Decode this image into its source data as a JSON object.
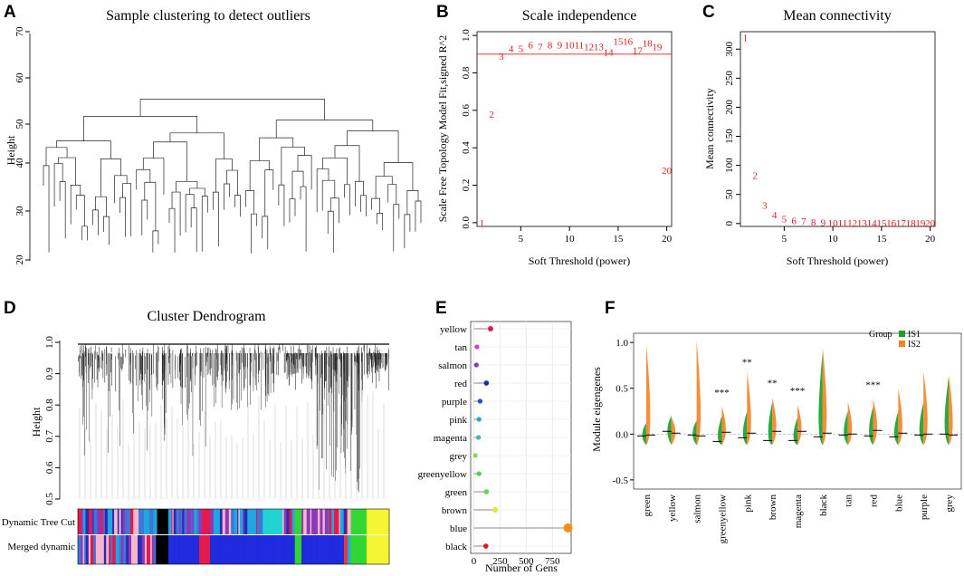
{
  "panels": {
    "A": {
      "letter": "A",
      "title": "Sample clustering to detect outliers",
      "ylabel": "Height",
      "yticks": [
        "20",
        "30",
        "40",
        "50",
        "60",
        "70"
      ],
      "ylim": [
        20,
        72
      ]
    },
    "B": {
      "letter": "B",
      "title": "Scale independence",
      "xlabel": "Soft Threshold (power)",
      "ylabel": "Scale Free Topology Model Fit,signed R^2",
      "xticks": [
        "5",
        "10",
        "15",
        "20"
      ],
      "yticks": [
        "0.0",
        "0.2",
        "0.4",
        "0.6",
        "0.8",
        "1.0"
      ]
    },
    "C": {
      "letter": "C",
      "title": "Mean connectivity",
      "xlabel": "Soft Threshold (power)",
      "ylabel": "Mean connectivity",
      "xticks": [
        "5",
        "10",
        "15",
        "20"
      ],
      "yticks": [
        "0",
        "50",
        "100",
        "150",
        "200",
        "250",
        "300"
      ]
    },
    "D": {
      "letter": "D",
      "title": "Cluster Dendrogram",
      "ylabel": "Height",
      "yticks": [
        "0.5",
        "0.6",
        "0.7",
        "0.8",
        "0.9",
        "1.0"
      ],
      "row1": "Dynamic Tree Cut",
      "row2": "Merged dynamic"
    },
    "E": {
      "letter": "E",
      "xlabel": "Number of Gens",
      "xticks": [
        "0",
        "250",
        "500",
        "750"
      ]
    },
    "F": {
      "letter": "F",
      "ylabel": "Module eigengenes",
      "yticks": [
        "-0.5",
        "0.0",
        "0.5",
        "1.0"
      ],
      "legend_title": "Group",
      "legend": [
        {
          "label": "IS1",
          "color": "#1a9e2c"
        },
        {
          "label": "IS2",
          "color": "#f58220"
        }
      ]
    }
  },
  "chart_data": [
    {
      "panel": "B",
      "type": "scatter",
      "title": "Scale independence",
      "xlabel": "Soft Threshold (power)",
      "ylabel": "Scale Free Topology Model Fit,signed R^2",
      "xlim": [
        0.5,
        20.5
      ],
      "ylim": [
        -0.02,
        1.02
      ],
      "x": [
        1,
        2,
        3,
        4,
        5,
        6,
        7,
        8,
        9,
        10,
        11,
        12,
        13,
        14,
        15,
        16,
        17,
        18,
        19,
        20
      ],
      "y": [
        0.0,
        0.58,
        0.89,
        0.93,
        0.93,
        0.95,
        0.94,
        0.95,
        0.95,
        0.95,
        0.95,
        0.94,
        0.94,
        0.91,
        0.97,
        0.97,
        0.92,
        0.96,
        0.94,
        0.28
      ],
      "labels": [
        "1",
        "2",
        "3",
        "4",
        "5",
        "6",
        "7",
        "8",
        "9",
        "10",
        "11",
        "12",
        "13",
        "14",
        "15",
        "16",
        "17",
        "18",
        "19",
        "20"
      ],
      "hline": 0.9,
      "color": "#e41a1c"
    },
    {
      "panel": "C",
      "type": "scatter",
      "title": "Mean connectivity",
      "xlabel": "Soft Threshold (power)",
      "ylabel": "Mean connectivity",
      "xlim": [
        0.5,
        20.5
      ],
      "ylim": [
        -5,
        330
      ],
      "x": [
        1,
        2,
        3,
        4,
        5,
        6,
        7,
        8,
        9,
        10,
        11,
        12,
        13,
        14,
        15,
        16,
        17,
        18,
        19,
        20
      ],
      "y": [
        320,
        83,
        32,
        15,
        8,
        5,
        4,
        3,
        2,
        1,
        1,
        1,
        1,
        1,
        1,
        1,
        1,
        1,
        1,
        1
      ],
      "labels": [
        "1",
        "2",
        "3",
        "4",
        "5",
        "6",
        "7",
        "8",
        "9",
        "10",
        "11",
        "12",
        "13",
        "14",
        "15",
        "16",
        "17",
        "18",
        "19",
        "20"
      ],
      "color": "#e41a1c"
    },
    {
      "panel": "E",
      "type": "bar",
      "orientation": "horizontal-lollipop",
      "xlabel": "Number of Gens",
      "xlim": [
        -30,
        930
      ],
      "categories": [
        "yellow",
        "tan",
        "salmon",
        "red",
        "purple",
        "pink",
        "magenta",
        "grey",
        "greenyellow",
        "green",
        "brown",
        "blue",
        "black"
      ],
      "values": [
        160,
        30,
        25,
        120,
        60,
        50,
        45,
        15,
        50,
        120,
        205,
        900,
        115
      ],
      "colors": [
        "#e6194b",
        "#cc44cc",
        "#8a3ab9",
        "#1f2bb5",
        "#2b48c8",
        "#1faad4",
        "#2fc0b0",
        "#7ed957",
        "#4fd04f",
        "#5ed65a",
        "#e6e635",
        "#ff8c1a",
        "#e31a1c"
      ]
    },
    {
      "panel": "F",
      "type": "violin",
      "ylabel": "Module eigengenes",
      "ylim": [
        -0.6,
        1.1
      ],
      "categories": [
        "green",
        "yellow",
        "salmon",
        "greenyellow",
        "pink",
        "brown",
        "magenta",
        "black",
        "tan",
        "red",
        "blue",
        "purple",
        "grey"
      ],
      "significance": [
        "",
        "",
        "",
        "***",
        "**",
        "**",
        "***",
        "",
        "",
        "***",
        "",
        "",
        ""
      ],
      "series": [
        {
          "name": "IS1",
          "medians": [
            -0.02,
            0.03,
            -0.01,
            -0.08,
            -0.04,
            -0.07,
            -0.07,
            -0.03,
            -0.01,
            -0.02,
            -0.03,
            -0.01,
            0.0
          ],
          "max": [
            0.12,
            0.2,
            0.15,
            0.2,
            0.25,
            0.35,
            0.18,
            0.9,
            0.25,
            0.3,
            0.25,
            0.35,
            0.62
          ]
        },
        {
          "name": "IS2",
          "medians": [
            -0.01,
            0.01,
            -0.02,
            0.02,
            0.01,
            0.03,
            0.03,
            0.01,
            0.0,
            0.04,
            0.01,
            0.0,
            -0.01
          ],
          "max": [
            0.98,
            0.18,
            1.02,
            0.3,
            0.68,
            0.4,
            0.32,
            0.95,
            0.35,
            0.38,
            0.5,
            0.68,
            0.65
          ]
        }
      ]
    }
  ]
}
